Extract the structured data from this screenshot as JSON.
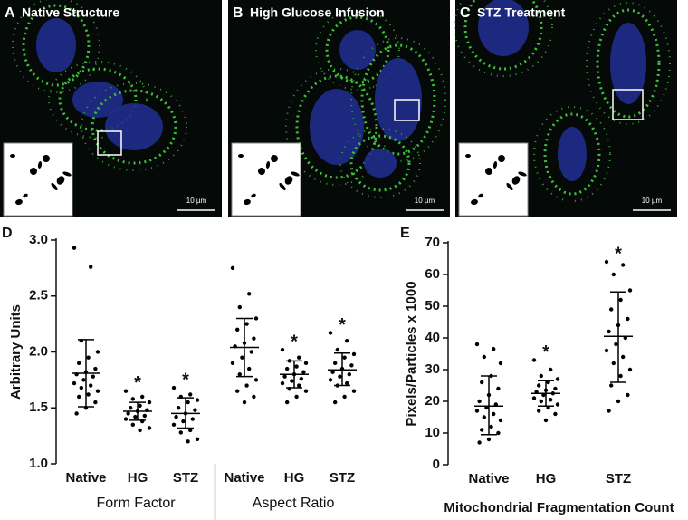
{
  "images": [
    {
      "letter": "A",
      "title": "Native Structure",
      "scale_bar": "10 µm"
    },
    {
      "letter": "B",
      "title": "High Glucose Infusion",
      "scale_bar": "10 µm"
    },
    {
      "letter": "C",
      "title": "STZ Treatment",
      "scale_bar": "10 µm"
    }
  ],
  "chart_data": [
    {
      "type": "dotplot",
      "panel": "D",
      "ylabel": "Arbitrary Units",
      "ylim": [
        1.0,
        3.0
      ],
      "yticks": [
        {
          "value": 1.0,
          "label": "1.0"
        },
        {
          "value": 1.5,
          "label": "1.5"
        },
        {
          "value": 2.0,
          "label": "2.0"
        },
        {
          "value": 2.5,
          "label": "2.5"
        },
        {
          "value": 3.0,
          "label": "3.0"
        }
      ],
      "group_labels": [
        "Form  Factor",
        "Aspect Ratio"
      ],
      "color": "#000000",
      "groups": [
        {
          "name": "Native",
          "mean": 1.81,
          "error": [
            1.51,
            2.11
          ],
          "points": [
            2.93,
            2.76,
            2.1,
            2.0,
            1.95,
            1.9,
            1.85,
            1.82,
            1.8,
            1.78,
            1.75,
            1.72,
            1.7,
            1.68,
            1.65,
            1.62,
            1.6,
            1.55,
            1.5,
            1.45
          ]
        },
        {
          "name": "HG",
          "mean": 1.47,
          "error": [
            1.39,
            1.55
          ],
          "annotation": "*",
          "points": [
            1.65,
            1.6,
            1.58,
            1.55,
            1.52,
            1.5,
            1.48,
            1.47,
            1.45,
            1.43,
            1.42,
            1.4,
            1.38,
            1.35,
            1.32,
            1.3
          ]
        },
        {
          "name": "STZ",
          "mean": 1.45,
          "error": [
            1.32,
            1.59
          ],
          "annotation": "*",
          "points": [
            1.68,
            1.62,
            1.6,
            1.57,
            1.55,
            1.5,
            1.48,
            1.45,
            1.42,
            1.4,
            1.38,
            1.35,
            1.3,
            1.28,
            1.22,
            1.2
          ]
        },
        {
          "name": "Native",
          "mean": 2.04,
          "error": [
            1.78,
            2.3
          ],
          "points": [
            2.75,
            2.52,
            2.4,
            2.3,
            2.25,
            2.2,
            2.12,
            2.08,
            2.05,
            2.0,
            1.95,
            1.9,
            1.85,
            1.8,
            1.75,
            1.7,
            1.65,
            1.6,
            1.55
          ]
        },
        {
          "name": "HG",
          "mean": 1.8,
          "error": [
            1.68,
            1.92
          ],
          "annotation": "*",
          "points": [
            2.02,
            1.95,
            1.92,
            1.9,
            1.87,
            1.85,
            1.82,
            1.8,
            1.78,
            1.76,
            1.74,
            1.72,
            1.7,
            1.67,
            1.65,
            1.6,
            1.55
          ]
        },
        {
          "name": "STZ",
          "mean": 1.84,
          "error": [
            1.7,
            1.99
          ],
          "annotation": "*",
          "points": [
            2.17,
            2.1,
            2.02,
            1.98,
            1.95,
            1.9,
            1.88,
            1.85,
            1.82,
            1.8,
            1.78,
            1.75,
            1.72,
            1.7,
            1.65,
            1.6,
            1.55
          ]
        }
      ]
    },
    {
      "type": "dotplot",
      "panel": "E",
      "ylabel": "Pixels/Particles x 1000",
      "xlabel": "Mitochondrial Fragmentation Count",
      "ylim": [
        0,
        70
      ],
      "yticks": [
        0,
        10,
        20,
        30,
        40,
        50,
        60,
        70
      ],
      "color": "#000000",
      "groups": [
        {
          "name": "Native",
          "mean": 18.5,
          "error": [
            9.5,
            28
          ],
          "points": [
            38,
            36.5,
            34,
            32,
            28,
            26,
            24,
            22,
            20,
            19,
            18,
            17,
            16,
            15,
            14,
            12,
            11,
            10,
            8,
            7
          ]
        },
        {
          "name": "HG",
          "mean": 22.5,
          "error": [
            18.5,
            26.5
          ],
          "annotation": "*",
          "points": [
            33,
            30,
            28,
            27,
            26,
            25,
            24,
            23.5,
            23,
            22.5,
            22,
            21,
            20.5,
            20,
            19,
            18,
            17,
            16,
            14
          ]
        },
        {
          "name": "STZ",
          "mean": 40.5,
          "error": [
            26,
            54.5
          ],
          "annotation": "*",
          "points": [
            64,
            63,
            60,
            55,
            52,
            49,
            46,
            44,
            42,
            40,
            38,
            36,
            34,
            32,
            30,
            28,
            25,
            22,
            20,
            17
          ]
        }
      ]
    }
  ]
}
